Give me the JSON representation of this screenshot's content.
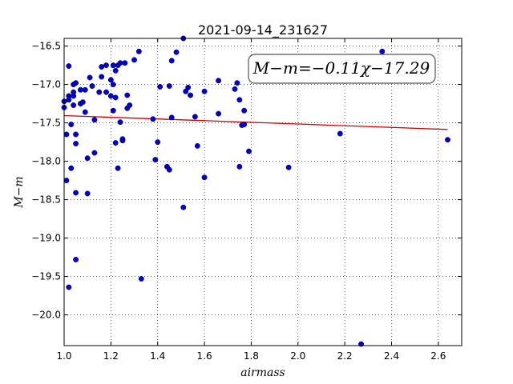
{
  "chart_data": {
    "type": "scatter",
    "title": "2021-09-14_231627",
    "xlabel": "airmass",
    "ylabel": "M−m",
    "xlim": [
      1.0,
      2.7
    ],
    "ylim": [
      -16.4,
      -20.4
    ],
    "y_inverted": true,
    "grid": true,
    "x_ticks": [
      "1.0",
      "1.2",
      "1.4",
      "1.6",
      "1.8",
      "2.0",
      "2.2",
      "2.4",
      "2.6"
    ],
    "x_tick_values": [
      1.0,
      1.2,
      1.4,
      1.6,
      1.8,
      2.0,
      2.2,
      2.4,
      2.6
    ],
    "y_ticks": [
      "−16.5",
      "−17.0",
      "−17.5",
      "−18.0",
      "−18.5",
      "−19.0",
      "−19.5",
      "−20.0"
    ],
    "y_tick_values": [
      -16.5,
      -17.0,
      -17.5,
      -18.0,
      -18.5,
      -19.0,
      -19.5,
      -20.0
    ],
    "annotation": "M−m=−0.11χ−17.29",
    "marker_color": "#0000cc",
    "fit_color": "#cc0000",
    "fit": {
      "slope": -0.11,
      "intercept": -17.29,
      "x_range": [
        1.0,
        2.64
      ]
    },
    "series": [
      {
        "points": [
          [
            1.0,
            -17.3
          ],
          [
            1.0,
            -17.22
          ],
          [
            1.01,
            -18.25
          ],
          [
            1.01,
            -17.65
          ],
          [
            1.02,
            -16.76
          ],
          [
            1.02,
            -17.2
          ],
          [
            1.02,
            -17.15
          ],
          [
            1.02,
            -19.64
          ],
          [
            1.03,
            -17.52
          ],
          [
            1.03,
            -18.09
          ],
          [
            1.04,
            -17.1
          ],
          [
            1.04,
            -17.27
          ],
          [
            1.04,
            -17.15
          ],
          [
            1.04,
            -17.0
          ],
          [
            1.05,
            -16.98
          ],
          [
            1.05,
            -19.28
          ],
          [
            1.05,
            -17.65
          ],
          [
            1.05,
            -17.77
          ],
          [
            1.05,
            -18.41
          ],
          [
            1.07,
            -17.07
          ],
          [
            1.07,
            -17.25
          ],
          [
            1.08,
            -17.23
          ],
          [
            1.09,
            -17.07
          ],
          [
            1.09,
            -17.36
          ],
          [
            1.1,
            -17.96
          ],
          [
            1.1,
            -18.42
          ],
          [
            1.11,
            -16.91
          ],
          [
            1.12,
            -17.02
          ],
          [
            1.13,
            -17.89
          ],
          [
            1.13,
            -17.46
          ],
          [
            1.15,
            -17.1
          ],
          [
            1.16,
            -16.9
          ],
          [
            1.16,
            -16.77
          ],
          [
            1.18,
            -16.75
          ],
          [
            1.18,
            -17.1
          ],
          [
            1.2,
            -16.94
          ],
          [
            1.2,
            -17.15
          ],
          [
            1.21,
            -17.34
          ],
          [
            1.21,
            -16.75
          ],
          [
            1.21,
            -17.0
          ],
          [
            1.22,
            -17.76
          ],
          [
            1.22,
            -17.17
          ],
          [
            1.22,
            -16.82
          ],
          [
            1.23,
            -16.75
          ],
          [
            1.23,
            -18.09
          ],
          [
            1.24,
            -17.49
          ],
          [
            1.24,
            -16.72
          ],
          [
            1.25,
            -17.73
          ],
          [
            1.25,
            -17.71
          ],
          [
            1.26,
            -16.72
          ],
          [
            1.27,
            -17.14
          ],
          [
            1.27,
            -17.31
          ],
          [
            1.28,
            -17.27
          ],
          [
            1.3,
            -16.68
          ],
          [
            1.32,
            -16.57
          ],
          [
            1.33,
            -19.53
          ],
          [
            1.38,
            -17.45
          ],
          [
            1.39,
            -17.98
          ],
          [
            1.4,
            -17.75
          ],
          [
            1.41,
            -17.03
          ],
          [
            1.44,
            -18.07
          ],
          [
            1.45,
            -18.11
          ],
          [
            1.45,
            -17.02
          ],
          [
            1.46,
            -16.69
          ],
          [
            1.46,
            -17.43
          ],
          [
            1.48,
            -16.58
          ],
          [
            1.51,
            -16.4
          ],
          [
            1.51,
            -18.6
          ],
          [
            1.52,
            -17.09
          ],
          [
            1.53,
            -17.04
          ],
          [
            1.54,
            -17.14
          ],
          [
            1.56,
            -17.42
          ],
          [
            1.57,
            -17.8
          ],
          [
            1.6,
            -17.09
          ],
          [
            1.6,
            -18.21
          ],
          [
            1.66,
            -16.95
          ],
          [
            1.66,
            -17.38
          ],
          [
            1.73,
            -17.06
          ],
          [
            1.74,
            -16.98
          ],
          [
            1.75,
            -18.07
          ],
          [
            1.75,
            -17.2
          ],
          [
            1.76,
            -17.53
          ],
          [
            1.77,
            -17.52
          ],
          [
            1.77,
            -17.34
          ],
          [
            1.79,
            -17.87
          ],
          [
            1.96,
            -18.08
          ],
          [
            2.18,
            -17.64
          ],
          [
            2.27,
            -20.38
          ],
          [
            2.36,
            -16.57
          ],
          [
            2.64,
            -17.72
          ]
        ]
      }
    ]
  }
}
